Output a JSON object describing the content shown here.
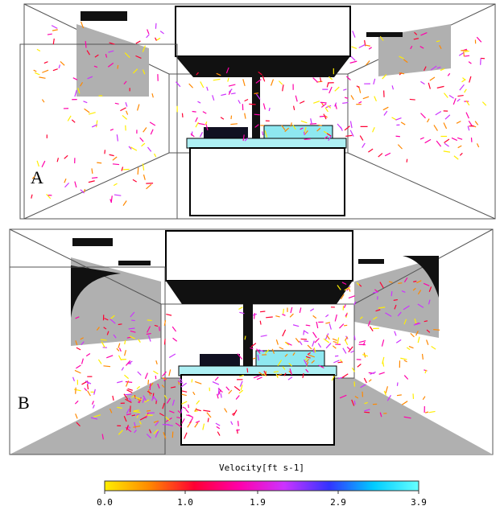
{
  "panels": [
    {
      "label": "A"
    },
    {
      "label": "B"
    }
  ],
  "colorbar": {
    "title": "Velocity[ft s-1]",
    "range": [
      0,
      3.9
    ],
    "ticks": [
      {
        "value": 0,
        "label": "0.0"
      },
      {
        "value": 1,
        "label": "1.0"
      },
      {
        "value": 1.9,
        "label": "1.9"
      },
      {
        "value": 2.9,
        "label": "2.9"
      },
      {
        "value": 3.9,
        "label": "3.9"
      }
    ],
    "colors": [
      "#ffee00",
      "#ff8800",
      "#ff0033",
      "#ff00aa",
      "#cc33ff",
      "#3333ff",
      "#00ccff",
      "#66ffff"
    ]
  }
}
